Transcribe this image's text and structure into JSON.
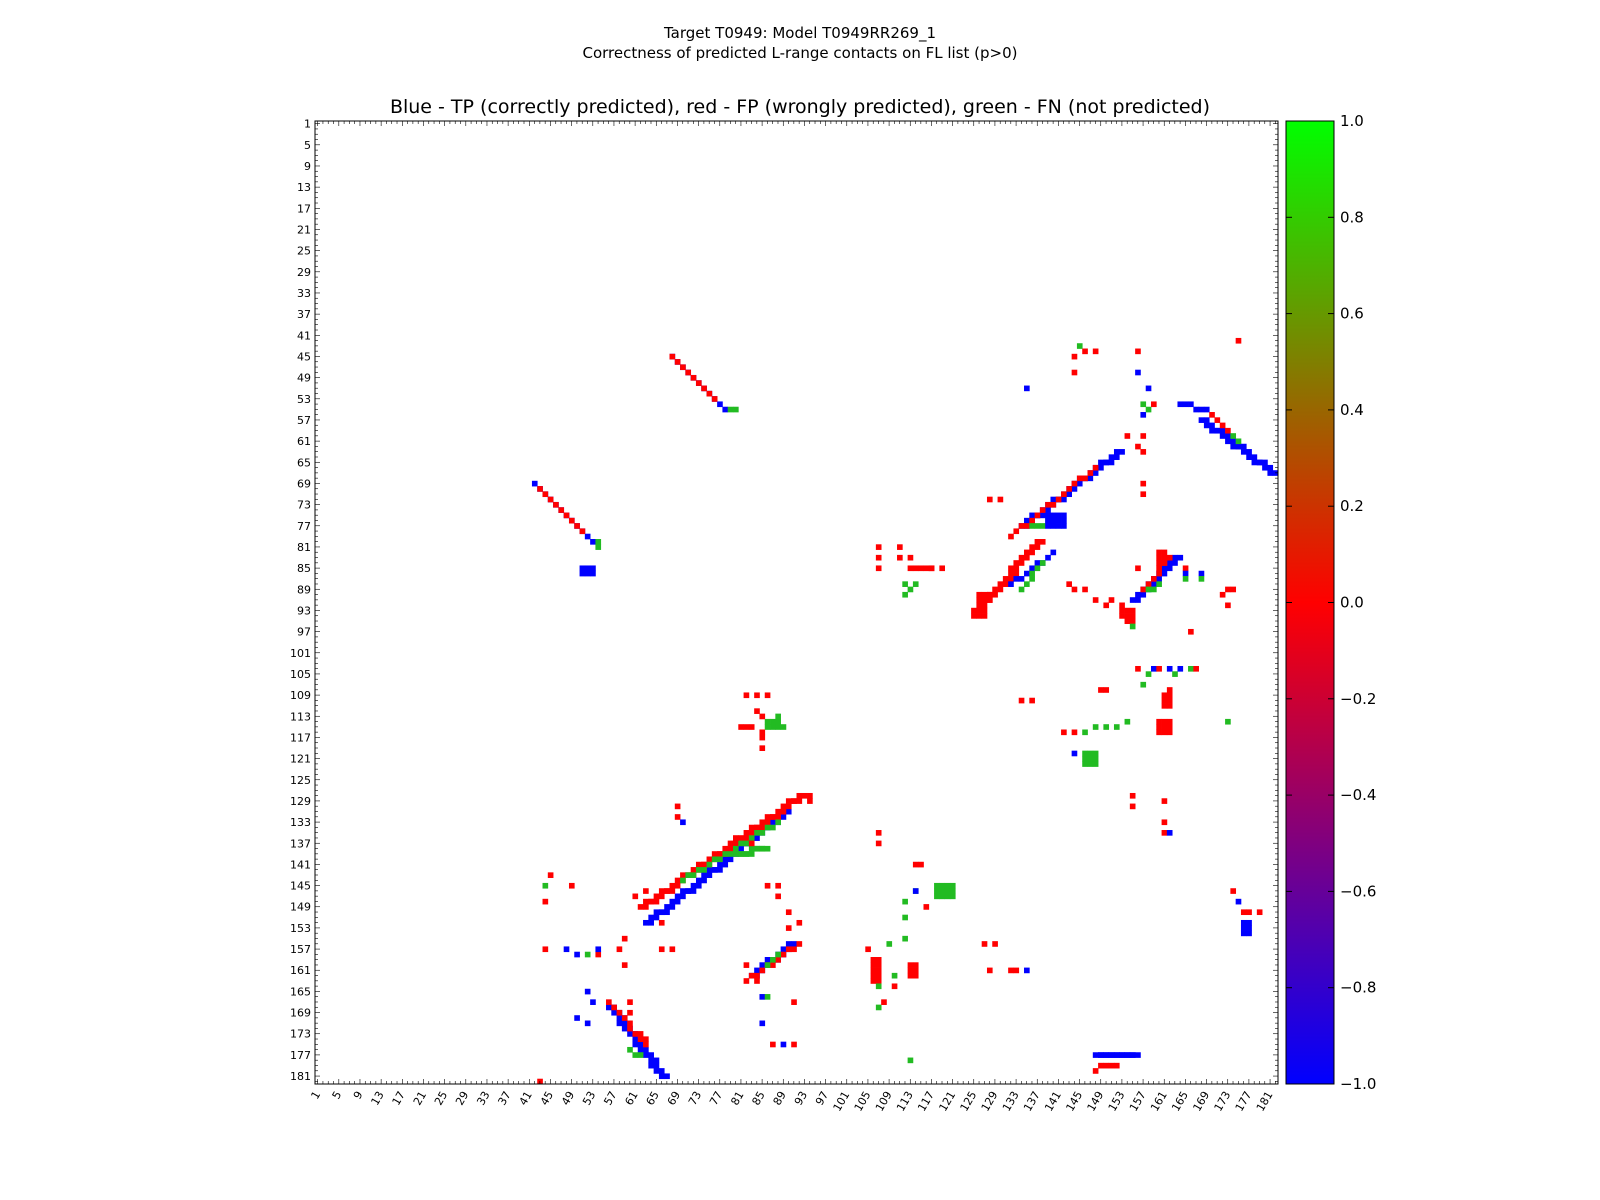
{
  "chart_data": {
    "type": "heatmap",
    "title": "Target T0949: Model T0949RR269_1",
    "subtitle": "Correctness of predicted L-range contacts on FL list (p>0)",
    "plot_title": "Blue - TP (correctly predicted), red - FP (wrongly predicted), green - FN (not predicted)",
    "xlabel": "",
    "ylabel": "",
    "xlim": [
      1,
      182
    ],
    "ylim": [
      1,
      182
    ],
    "tick_labels": [
      "1",
      "5",
      "9",
      "13",
      "17",
      "21",
      "25",
      "29",
      "33",
      "37",
      "41",
      "45",
      "49",
      "53",
      "57",
      "61",
      "65",
      "69",
      "73",
      "77",
      "81",
      "85",
      "89",
      "93",
      "97",
      "101",
      "105",
      "109",
      "113",
      "117",
      "121",
      "125",
      "129",
      "133",
      "137",
      "141",
      "145",
      "149",
      "153",
      "157",
      "161",
      "165",
      "169",
      "173",
      "177",
      "181"
    ],
    "colorbar": {
      "range": [
        -1.0,
        1.0
      ],
      "tick_labels": [
        "1.0",
        "0.8",
        "0.6",
        "0.4",
        "0.2",
        "0.0",
        "−0.2",
        "−0.4",
        "−0.6",
        "−0.8",
        "−1.0"
      ],
      "tick_values": [
        1.0,
        0.8,
        0.6,
        0.4,
        0.2,
        0.0,
        -0.2,
        -0.4,
        -0.6,
        -0.8,
        -1.0
      ],
      "stops": [
        "#0000ff",
        "#ff0000",
        "#00ff00"
      ]
    },
    "colors": {
      "TP": "#0000ff",
      "FP": "#ff0000",
      "FN": "#22bb22"
    },
    "segments": [
      {
        "cls": "TP",
        "x": [
          68,
          78
        ],
        "y": [
          45,
          55
        ],
        "w": 1
      },
      {
        "cls": "FP",
        "x": [
          68,
          76
        ],
        "y": [
          45,
          53
        ],
        "w": 1
      },
      {
        "cls": "FN",
        "x": [
          79,
          80
        ],
        "y": [
          55,
          55
        ],
        "w": 1
      },
      {
        "cls": "TP",
        "x": [
          42,
          53
        ],
        "y": [
          69,
          80
        ],
        "w": 1
      },
      {
        "cls": "FP",
        "x": [
          43,
          51
        ],
        "y": [
          70,
          78
        ],
        "w": 1
      },
      {
        "cls": "FN",
        "x": [
          54,
          54
        ],
        "y": [
          80,
          81
        ],
        "w": 1
      },
      {
        "cls": "TP",
        "x": [
          134,
          152
        ],
        "y": [
          77,
          63
        ],
        "w": 2
      },
      {
        "cls": "FP",
        "x": [
          132,
          148
        ],
        "y": [
          79,
          66
        ],
        "w": 1
      },
      {
        "cls": "FN",
        "x": [
          136,
          140
        ],
        "y": [
          77,
          76
        ],
        "w": 1
      },
      {
        "cls": "FP",
        "x": [
          126,
          137
        ],
        "y": [
          92,
          80
        ],
        "w": 2
      },
      {
        "cls": "TP",
        "x": [
          132,
          140
        ],
        "y": [
          88,
          82
        ],
        "w": 1
      },
      {
        "cls": "FN",
        "x": [
          134,
          138
        ],
        "y": [
          89,
          84
        ],
        "w": 1
      },
      {
        "cls": "TP",
        "x": [
          155,
          163
        ],
        "y": [
          91,
          83
        ],
        "w": 2
      },
      {
        "cls": "FP",
        "x": [
          157,
          162
        ],
        "y": [
          89,
          83
        ],
        "w": 1
      },
      {
        "cls": "FN",
        "x": [
          158,
          160
        ],
        "y": [
          89,
          88
        ],
        "w": 1
      },
      {
        "cls": "TP",
        "x": [
          168,
          181
        ],
        "y": [
          57,
          67
        ],
        "w": 2
      },
      {
        "cls": "TP",
        "x": [
          164,
          169
        ],
        "y": [
          54,
          55
        ],
        "w": 1
      },
      {
        "cls": "FP",
        "x": [
          170,
          173
        ],
        "y": [
          56,
          59
        ],
        "w": 1
      },
      {
        "cls": "FN",
        "x": [
          174,
          175
        ],
        "y": [
          60,
          61
        ],
        "w": 1
      },
      {
        "cls": "TP",
        "x": [
          63,
          89
        ],
        "y": [
          152,
          131
        ],
        "w": 2
      },
      {
        "cls": "FP",
        "x": [
          62,
          92
        ],
        "y": [
          149,
          128
        ],
        "w": 2
      },
      {
        "cls": "FN",
        "x": [
          70,
          88
        ],
        "y": [
          144,
          133
        ],
        "w": 1
      },
      {
        "cls": "FN",
        "x": [
          80,
          85
        ],
        "y": [
          139,
          138
        ],
        "w": 2
      },
      {
        "cls": "TP",
        "x": [
          83,
          90
        ],
        "y": [
          162,
          156
        ],
        "w": 2
      },
      {
        "cls": "FP",
        "x": [
          82,
          92
        ],
        "y": [
          163,
          156
        ],
        "w": 1
      },
      {
        "cls": "FN",
        "x": [
          86,
          88
        ],
        "y": [
          160,
          158
        ],
        "w": 1
      },
      {
        "cls": "TP",
        "x": [
          56,
          66
        ],
        "y": [
          168,
          181
        ],
        "w": 2
      },
      {
        "cls": "FP",
        "x": [
          56,
          63
        ],
        "y": [
          167,
          175
        ],
        "w": 1
      },
      {
        "cls": "FN",
        "x": [
          60,
          62
        ],
        "y": [
          176,
          177
        ],
        "w": 1
      },
      {
        "cls": "TP",
        "x": [
          148,
          155
        ],
        "y": [
          177,
          177
        ],
        "w": 2
      },
      {
        "cls": "FP",
        "x": [
          149,
          152
        ],
        "y": [
          179,
          179
        ],
        "w": 1
      }
    ],
    "blocks": [
      {
        "cls": "FP",
        "x": [
          126,
          128
        ],
        "y": [
          90,
          91
        ]
      },
      {
        "cls": "FP",
        "x": [
          125,
          127
        ],
        "y": [
          93,
          94
        ]
      },
      {
        "cls": "FP",
        "x": [
          160,
          161
        ],
        "y": [
          82,
          84
        ]
      },
      {
        "cls": "FP",
        "x": [
          160,
          162
        ],
        "y": [
          114,
          116
        ]
      },
      {
        "cls": "FP",
        "x": [
          161,
          162
        ],
        "y": [
          109,
          111
        ]
      },
      {
        "cls": "FP",
        "x": [
          113,
          114
        ],
        "y": [
          160,
          162
        ]
      },
      {
        "cls": "FP",
        "x": [
          106,
          107
        ],
        "y": [
          159,
          163
        ]
      },
      {
        "cls": "FP",
        "x": [
          81,
          83
        ],
        "y": [
          115,
          115
        ]
      },
      {
        "cls": "FP",
        "x": [
          113,
          117
        ],
        "y": [
          85,
          85
        ]
      },
      {
        "cls": "FP",
        "x": [
          153,
          155
        ],
        "y": [
          93,
          94
        ]
      },
      {
        "cls": "FN",
        "x": [
          146,
          148
        ],
        "y": [
          120,
          122
        ]
      },
      {
        "cls": "FN",
        "x": [
          118,
          121
        ],
        "y": [
          145,
          147
        ]
      },
      {
        "cls": "FN",
        "x": [
          86,
          88
        ],
        "y": [
          114,
          115
        ]
      },
      {
        "cls": "TP",
        "x": [
          176,
          177
        ],
        "y": [
          152,
          154
        ]
      },
      {
        "cls": "TP",
        "x": [
          139,
          142
        ],
        "y": [
          75,
          77
        ]
      },
      {
        "cls": "TP",
        "x": [
          51,
          53
        ],
        "y": [
          85,
          86
        ]
      }
    ],
    "points": [
      [
        "FP",
        43,
        182
      ],
      [
        "FP",
        45,
        143
      ],
      [
        "FP",
        49,
        145
      ],
      [
        "FN",
        44,
        145
      ],
      [
        "FP",
        44,
        148
      ],
      [
        "FP",
        44,
        157
      ],
      [
        "TP",
        48,
        157
      ],
      [
        "TP",
        50,
        158
      ],
      [
        "FN",
        52,
        158
      ],
      [
        "FP",
        54,
        158
      ],
      [
        "TP",
        54,
        157
      ],
      [
        "TP",
        52,
        165
      ],
      [
        "TP",
        53,
        167
      ],
      [
        "TP",
        50,
        170
      ],
      [
        "TP",
        52,
        171
      ],
      [
        "FP",
        58,
        157
      ],
      [
        "FP",
        59,
        155
      ],
      [
        "FP",
        59,
        160
      ],
      [
        "FP",
        60,
        167
      ],
      [
        "FP",
        60,
        169
      ],
      [
        "FP",
        62,
        173
      ],
      [
        "FP",
        63,
        174
      ],
      [
        "FP",
        66,
        157
      ],
      [
        "FP",
        68,
        157
      ],
      [
        "FP",
        61,
        147
      ],
      [
        "FP",
        63,
        146
      ],
      [
        "FP",
        66,
        152
      ],
      [
        "FP",
        69,
        130
      ],
      [
        "FP",
        69,
        132
      ],
      [
        "TP",
        70,
        133
      ],
      [
        "FP",
        80,
        136
      ],
      [
        "FP",
        83,
        137
      ],
      [
        "FP",
        82,
        160
      ],
      [
        "FP",
        84,
        163
      ],
      [
        "TP",
        85,
        166
      ],
      [
        "FN",
        86,
        166
      ],
      [
        "TP",
        85,
        171
      ],
      [
        "FP",
        87,
        175
      ],
      [
        "TP",
        89,
        175
      ],
      [
        "FP",
        91,
        175
      ],
      [
        "FP",
        91,
        167
      ],
      [
        "FP",
        86,
        145
      ],
      [
        "FP",
        88,
        145
      ],
      [
        "FP",
        88,
        147
      ],
      [
        "FP",
        90,
        150
      ],
      [
        "FP",
        90,
        153
      ],
      [
        "FP",
        92,
        152
      ],
      [
        "FP",
        94,
        129
      ],
      [
        "FP",
        94,
        128
      ],
      [
        "FP",
        84,
        109
      ],
      [
        "FP",
        86,
        109
      ],
      [
        "FP",
        82,
        109
      ],
      [
        "FP",
        85,
        116
      ],
      [
        "FP",
        85,
        117
      ],
      [
        "FP",
        85,
        119
      ],
      [
        "FN",
        88,
        113
      ],
      [
        "FN",
        89,
        115
      ],
      [
        "FP",
        85,
        113
      ],
      [
        "FP",
        84,
        112
      ],
      [
        "FP",
        107,
        135
      ],
      [
        "FP",
        107,
        137
      ],
      [
        "FP",
        105,
        157
      ],
      [
        "FN",
        109,
        156
      ],
      [
        "FN",
        110,
        162
      ],
      [
        "FP",
        110,
        164
      ],
      [
        "FN",
        107,
        164
      ],
      [
        "FN",
        107,
        168
      ],
      [
        "FP",
        108,
        167
      ],
      [
        "FN",
        113,
        178
      ],
      [
        "FN",
        112,
        148
      ],
      [
        "FN",
        112,
        151
      ],
      [
        "FN",
        112,
        155
      ],
      [
        "FN",
        114,
        146
      ],
      [
        "FP",
        114,
        141
      ],
      [
        "FP",
        115,
        141
      ],
      [
        "TP",
        114,
        146
      ],
      [
        "FP",
        116,
        149
      ],
      [
        "FP",
        107,
        81
      ],
      [
        "FP",
        107,
        83
      ],
      [
        "FP",
        107,
        85
      ],
      [
        "FP",
        111,
        81
      ],
      [
        "FP",
        111,
        83
      ],
      [
        "FP",
        113,
        83
      ],
      [
        "FP",
        117,
        85
      ],
      [
        "FP",
        119,
        85
      ],
      [
        "FN",
        112,
        88
      ],
      [
        "FN",
        113,
        89
      ],
      [
        "FN",
        114,
        88
      ],
      [
        "FN",
        112,
        90
      ],
      [
        "FP",
        127,
        156
      ],
      [
        "FP",
        129,
        156
      ],
      [
        "FP",
        128,
        161
      ],
      [
        "FP",
        132,
        161
      ],
      [
        "FP",
        133,
        161
      ],
      [
        "TP",
        135,
        161
      ],
      [
        "FP",
        128,
        72
      ],
      [
        "FP",
        130,
        72
      ],
      [
        "FP",
        134,
        110
      ],
      [
        "FP",
        136,
        110
      ],
      [
        "TP",
        135,
        51
      ],
      [
        "FP",
        143,
        88
      ],
      [
        "FP",
        144,
        89
      ],
      [
        "FP",
        146,
        89
      ],
      [
        "FN",
        145,
        43
      ],
      [
        "FP",
        144,
        45
      ],
      [
        "FP",
        146,
        44
      ],
      [
        "FP",
        148,
        44
      ],
      [
        "FP",
        144,
        48
      ],
      [
        "FP",
        142,
        116
      ],
      [
        "FP",
        144,
        116
      ],
      [
        "FN",
        146,
        116
      ],
      [
        "FN",
        148,
        115
      ],
      [
        "FN",
        150,
        115
      ],
      [
        "FN",
        152,
        115
      ],
      [
        "FN",
        154,
        114
      ],
      [
        "TP",
        144,
        120
      ],
      [
        "FP",
        149,
        108
      ],
      [
        "FP",
        150,
        108
      ],
      [
        "FP",
        148,
        180
      ],
      [
        "FP",
        148,
        91
      ],
      [
        "FP",
        150,
        92
      ],
      [
        "FP",
        151,
        91
      ],
      [
        "FP",
        153,
        92
      ],
      [
        "FP",
        154,
        95
      ],
      [
        "FP",
        156,
        85
      ],
      [
        "FP",
        155,
        95
      ],
      [
        "FN",
        155,
        96
      ],
      [
        "FP",
        156,
        62
      ],
      [
        "FP",
        154,
        60
      ],
      [
        "FP",
        157,
        60
      ],
      [
        "FP",
        157,
        63
      ],
      [
        "FP",
        157,
        69
      ],
      [
        "FP",
        157,
        71
      ],
      [
        "FP",
        156,
        44
      ],
      [
        "TP",
        156,
        48
      ],
      [
        "FN",
        157,
        54
      ],
      [
        "TP",
        158,
        51
      ],
      [
        "FP",
        159,
        54
      ],
      [
        "TP",
        157,
        56
      ],
      [
        "FN",
        158,
        55
      ],
      [
        "FP",
        156,
        104
      ],
      [
        "FN",
        157,
        107
      ],
      [
        "FN",
        158,
        105
      ],
      [
        "TP",
        159,
        104
      ],
      [
        "FP",
        160,
        104
      ],
      [
        "TP",
        162,
        104
      ],
      [
        "FP",
        162,
        108
      ],
      [
        "FN",
        163,
        105
      ],
      [
        "TP",
        164,
        104
      ],
      [
        "FN",
        166,
        104
      ],
      [
        "FP",
        167,
        104
      ],
      [
        "FP",
        165,
        85
      ],
      [
        "TP",
        165,
        86
      ],
      [
        "FN",
        165,
        87
      ],
      [
        "TP",
        168,
        86
      ],
      [
        "FN",
        168,
        87
      ],
      [
        "FN",
        173,
        114
      ],
      [
        "FP",
        172,
        90
      ],
      [
        "FP",
        173,
        89
      ],
      [
        "FP",
        174,
        89
      ],
      [
        "FP",
        173,
        92
      ],
      [
        "FP",
        175,
        42
      ],
      [
        "FP",
        166,
        97
      ],
      [
        "FP",
        161,
        129
      ],
      [
        "FP",
        161,
        133
      ],
      [
        "FP",
        161,
        135
      ],
      [
        "TP",
        162,
        135
      ],
      [
        "FP",
        155,
        128
      ],
      [
        "FP",
        155,
        130
      ],
      [
        "FP",
        174,
        146
      ],
      [
        "TP",
        175,
        148
      ],
      [
        "FP",
        176,
        150
      ],
      [
        "FP",
        177,
        150
      ],
      [
        "FP",
        179,
        150
      ]
    ]
  }
}
